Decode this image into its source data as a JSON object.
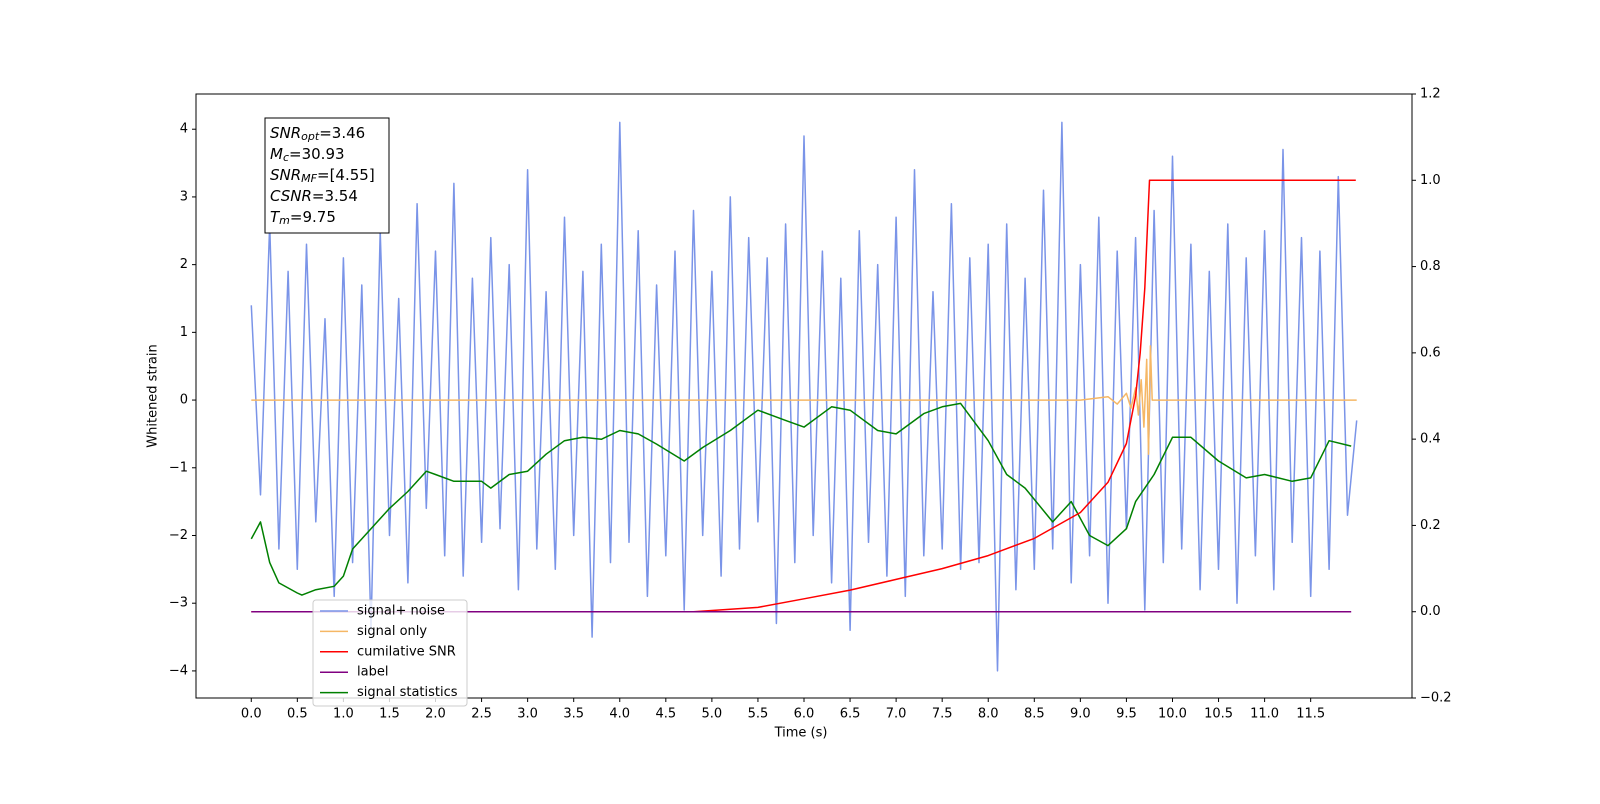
{
  "chart_data": {
    "type": "line",
    "xlabel": "Time (s)",
    "ylabel": "Whitened strain",
    "xlim": [
      -0.6,
      12.6
    ],
    "ylim": [
      -4.4,
      4.52
    ],
    "y2lim": [
      -0.2,
      1.2
    ],
    "xticks": [
      {
        "value": 0,
        "label": "0.0"
      },
      0.5,
      {
        "value": 1,
        "label": "1.0"
      },
      1.5,
      {
        "value": 2,
        "label": "2.0"
      },
      2.5,
      {
        "value": 3,
        "label": "3.0"
      },
      3.5,
      {
        "value": 4,
        "label": "4.0"
      },
      4.5,
      {
        "value": 5,
        "label": "5.0"
      },
      5.5,
      {
        "value": 6,
        "label": "6.0"
      },
      6.5,
      {
        "value": 7,
        "label": "7.0"
      },
      7.5,
      {
        "value": 8,
        "label": "8.0"
      },
      8.5,
      {
        "value": 9,
        "label": "9.0"
      },
      9.5,
      {
        "value": 10,
        "label": "10.0"
      },
      10.5,
      {
        "value": 11,
        "label": "11.0"
      },
      11.5
    ],
    "yticks": [
      {
        "value": -4,
        "label": "−4"
      },
      {
        "value": -3,
        "label": "−3"
      },
      {
        "value": -2,
        "label": "−2"
      },
      {
        "value": -1,
        "label": "−1"
      },
      0,
      1,
      2,
      3,
      4
    ],
    "y2ticks": [
      {
        "value": -0.2,
        "label": "−0.2"
      },
      {
        "value": 0,
        "label": "0.0"
      },
      0.2,
      0.4,
      0.6,
      0.8,
      {
        "value": 1,
        "label": "1.0"
      },
      1.2
    ],
    "annotation": [
      [
        "SNR",
        "opt",
        "=3.46"
      ],
      [
        "M",
        "c",
        "=30.93"
      ],
      [
        "SNR",
        "MF",
        "=[4.55]"
      ],
      [
        "CSNR",
        "",
        "=3.54"
      ],
      [
        "T",
        "m",
        "=9.75"
      ]
    ],
    "series": [
      {
        "name": "signal+ noise",
        "color": "#7a94e8",
        "x": [
          0,
          0.1,
          0.2,
          0.3,
          0.4,
          0.5,
          0.6,
          0.7,
          0.8,
          0.9,
          1,
          1.1,
          1.2,
          1.3,
          1.4,
          1.5,
          1.6,
          1.7,
          1.8,
          1.9,
          2,
          2.1,
          2.2,
          2.3,
          2.4,
          2.5,
          2.6,
          2.7,
          2.8,
          2.9,
          3,
          3.1,
          3.2,
          3.3,
          3.4,
          3.5,
          3.6,
          3.7,
          3.8,
          3.9,
          4,
          4.1,
          4.2,
          4.3,
          4.4,
          4.5,
          4.6,
          4.7,
          4.8,
          4.9,
          5,
          5.1,
          5.2,
          5.3,
          5.4,
          5.5,
          5.6,
          5.7,
          5.8,
          5.9,
          6,
          6.1,
          6.2,
          6.3,
          6.4,
          6.5,
          6.6,
          6.7,
          6.8,
          6.9,
          7,
          7.1,
          7.2,
          7.3,
          7.4,
          7.5,
          7.6,
          7.7,
          7.8,
          7.9,
          8,
          8.1,
          8.2,
          8.3,
          8.4,
          8.5,
          8.6,
          8.7,
          8.8,
          8.9,
          9,
          9.1,
          9.2,
          9.3,
          9.4,
          9.5,
          9.6,
          9.7,
          9.8,
          9.9,
          10,
          10.1,
          10.2,
          10.3,
          10.4,
          10.5,
          10.6,
          10.7,
          10.8,
          10.9,
          11,
          11.1,
          11.2,
          11.3,
          11.4,
          11.5,
          11.6,
          11.7,
          11.8,
          11.9,
          12
        ],
        "values": [
          1.4,
          -1.4,
          2.6,
          -2.2,
          1.9,
          -2.5,
          2.3,
          -1.8,
          1.2,
          -2.9,
          2.1,
          -2.4,
          1.7,
          -3.4,
          2.5,
          -2.0,
          1.5,
          -2.7,
          2.9,
          -1.6,
          2.2,
          -2.3,
          3.2,
          -2.6,
          1.8,
          -2.1,
          2.4,
          -1.9,
          2.0,
          -2.8,
          3.4,
          -2.2,
          1.6,
          -2.5,
          2.7,
          -2.0,
          1.9,
          -3.5,
          2.3,
          -2.4,
          4.1,
          -2.1,
          2.5,
          -2.9,
          1.7,
          -2.3,
          2.2,
          -3.1,
          2.8,
          -2.0,
          1.9,
          -2.6,
          3.0,
          -2.2,
          2.4,
          -1.8,
          2.1,
          -3.3,
          2.6,
          -2.4,
          3.9,
          -2.0,
          2.2,
          -2.7,
          1.8,
          -3.4,
          2.5,
          -2.1,
          2.0,
          -2.6,
          2.7,
          -2.9,
          3.4,
          -2.3,
          1.6,
          -2.2,
          2.9,
          -2.5,
          2.1,
          -2.4,
          2.3,
          -4.0,
          2.6,
          -2.8,
          1.8,
          -2.5,
          3.1,
          -2.2,
          4.1,
          -2.7,
          2.0,
          -2.3,
          2.7,
          -3.0,
          2.2,
          -1.9,
          2.4,
          -3.1,
          2.8,
          -2.4,
          3.6,
          -2.2,
          2.3,
          -2.8,
          1.9,
          -2.5,
          2.6,
          -3.0,
          2.1,
          -2.3,
          2.5,
          -2.8,
          3.7,
          -2.1,
          2.4,
          -2.9,
          2.2,
          -2.5,
          3.3,
          -1.7,
          -0.3
        ]
      },
      {
        "name": "signal only",
        "color": "#f5b765",
        "x": [
          0,
          9.0,
          9.3,
          9.4,
          9.5,
          9.55,
          9.6,
          9.63,
          9.66,
          9.69,
          9.72,
          9.74,
          9.76,
          9.78,
          12
        ],
        "values": [
          0,
          0,
          0.05,
          -0.06,
          0.1,
          -0.12,
          0.18,
          -0.22,
          0.3,
          -0.4,
          0.6,
          -0.8,
          0.8,
          0,
          0
        ]
      },
      {
        "name": "signal statistics",
        "color": "#008000",
        "x": [
          0,
          0.1,
          0.2,
          0.3,
          0.5,
          0.55,
          0.7,
          0.9,
          1.0,
          1.1,
          1.3,
          1.5,
          1.7,
          1.9,
          2.0,
          2.2,
          2.5,
          2.6,
          2.8,
          3.0,
          3.2,
          3.4,
          3.6,
          3.8,
          4.0,
          4.2,
          4.4,
          4.7,
          4.9,
          5.2,
          5.5,
          5.8,
          6.0,
          6.3,
          6.5,
          6.8,
          7.0,
          7.3,
          7.5,
          7.7,
          8.0,
          8.2,
          8.4,
          8.7,
          8.9,
          9.1,
          9.3,
          9.5,
          9.6,
          9.8,
          10.0,
          10.2,
          10.5,
          10.8,
          11.0,
          11.3,
          11.5,
          11.7,
          11.94
        ],
        "values": [
          -2.05,
          -1.8,
          -2.4,
          -2.7,
          -2.85,
          -2.88,
          -2.8,
          -2.75,
          -2.6,
          -2.2,
          -1.9,
          -1.6,
          -1.35,
          -1.05,
          -1.1,
          -1.2,
          -1.2,
          -1.3,
          -1.1,
          -1.05,
          -0.8,
          -0.6,
          -0.55,
          -0.58,
          -0.45,
          -0.5,
          -0.65,
          -0.9,
          -0.7,
          -0.45,
          -0.15,
          -0.3,
          -0.4,
          -0.1,
          -0.15,
          -0.45,
          -0.5,
          -0.2,
          -0.1,
          -0.05,
          -0.6,
          -1.1,
          -1.3,
          -1.8,
          -1.5,
          -2.0,
          -2.15,
          -1.9,
          -1.5,
          -1.1,
          -0.55,
          -0.55,
          -0.9,
          -1.15,
          -1.1,
          -1.2,
          -1.15,
          -0.6,
          -0.68
        ]
      },
      {
        "name": "cumilative SNR",
        "color": "#ff0000",
        "axis": "y2",
        "x": [
          0,
          4.8,
          5.5,
          6,
          6.5,
          7,
          7.5,
          8,
          8.5,
          9,
          9.3,
          9.5,
          9.6,
          9.65,
          9.7,
          9.73,
          9.75,
          11.99
        ],
        "values": [
          0,
          0,
          0.01,
          0.03,
          0.05,
          0.075,
          0.1,
          0.13,
          0.17,
          0.23,
          0.3,
          0.39,
          0.5,
          0.6,
          0.75,
          0.9,
          1.0,
          1.0
        ]
      },
      {
        "name": "label",
        "color": "#800080",
        "axis": "y2",
        "x": [
          0,
          11.94
        ],
        "values": [
          0,
          0
        ]
      }
    ],
    "legend_order": [
      0,
      1,
      3,
      4,
      2
    ]
  }
}
